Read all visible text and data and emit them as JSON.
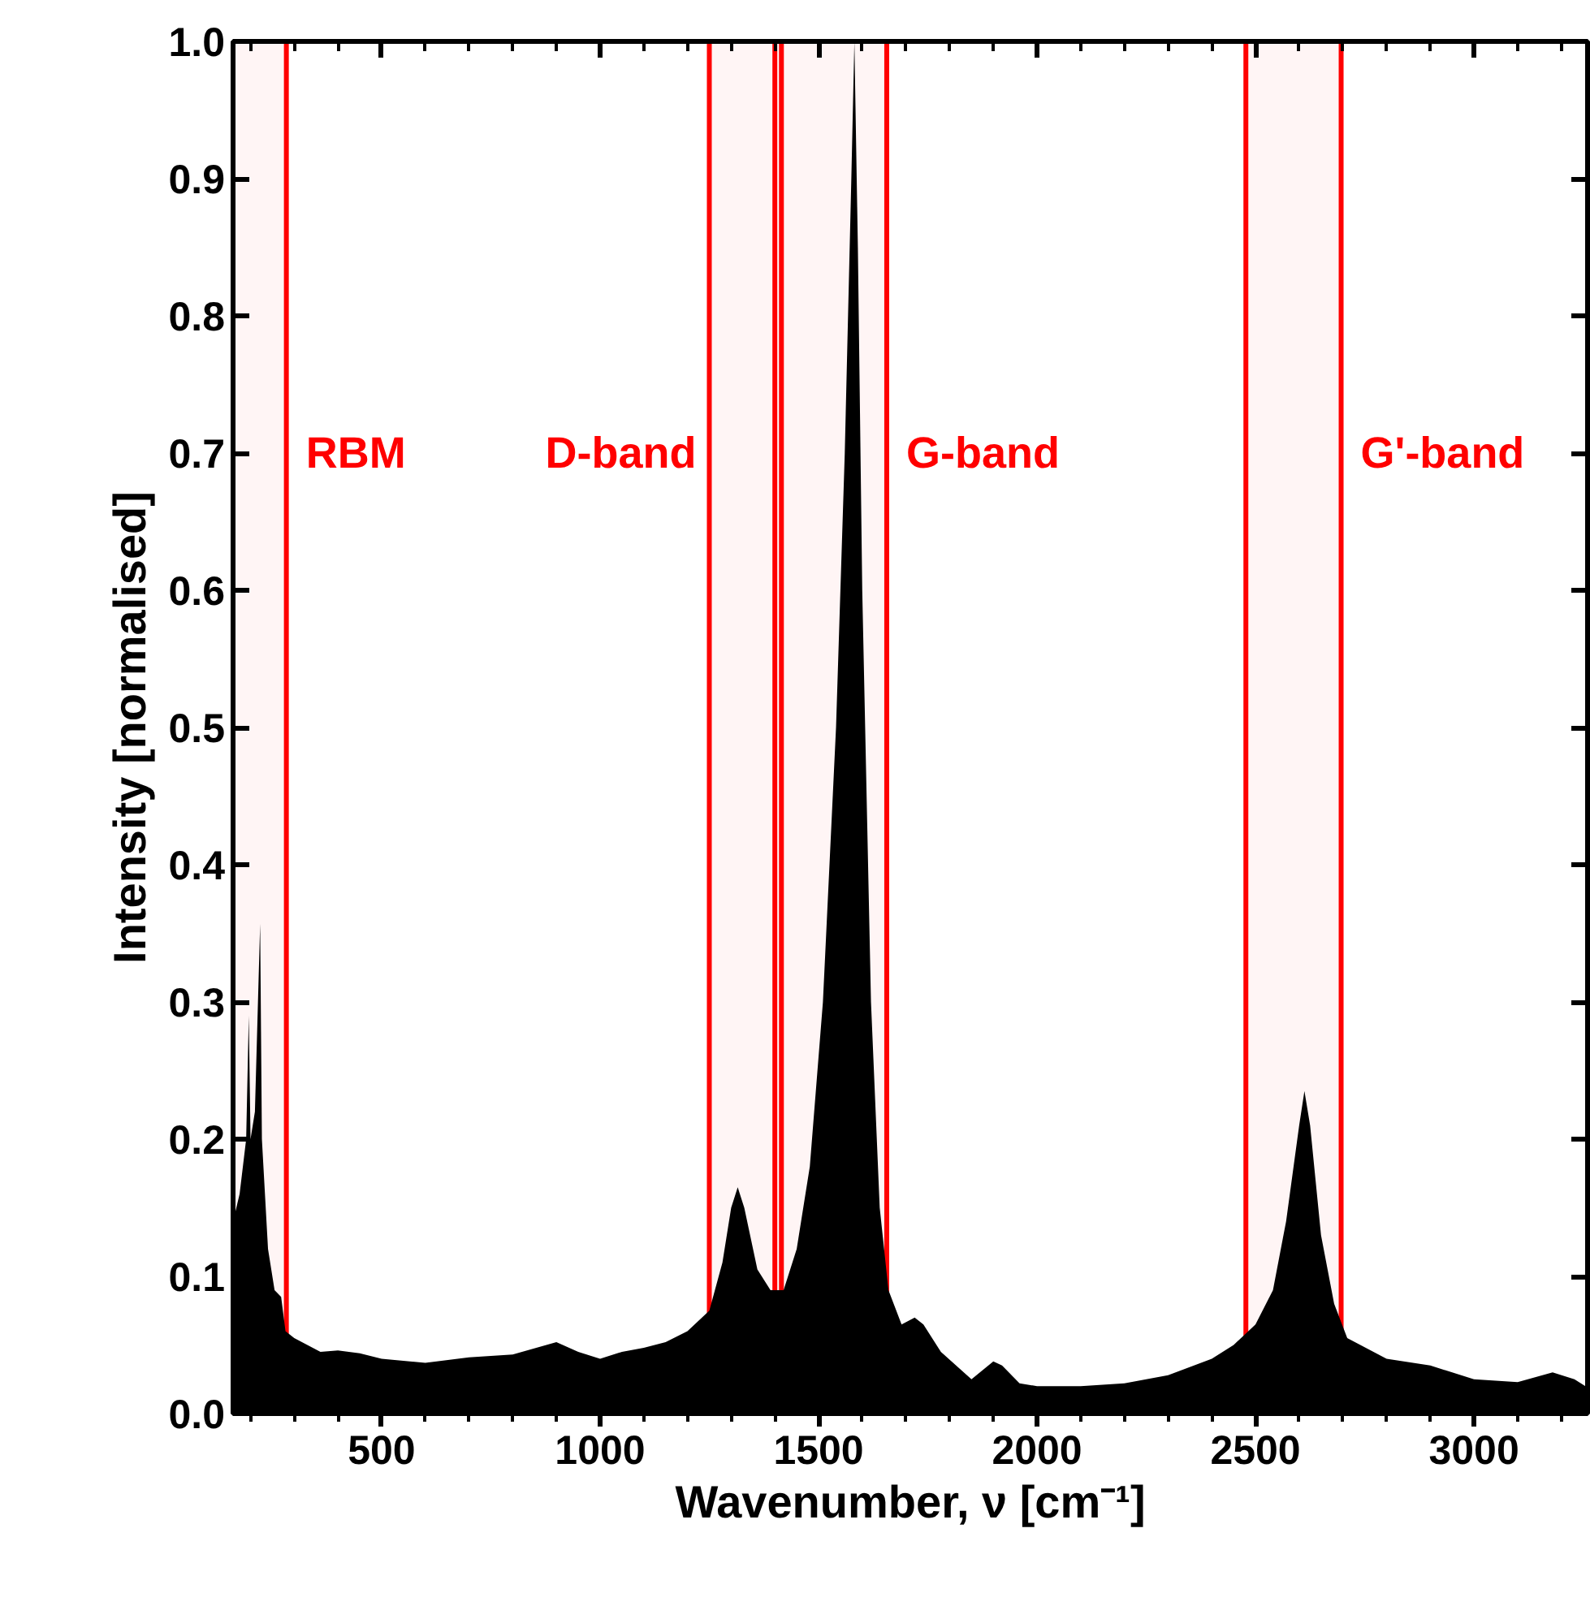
{
  "chart_data": {
    "type": "area",
    "xlabel": "Wavenumber, ν [cm⁻¹]",
    "ylabel": "Intensity [normalised]",
    "x": [
      160,
      175,
      190,
      196,
      200,
      210,
      222,
      226,
      240,
      255,
      270,
      280,
      300,
      330,
      360,
      400,
      450,
      500,
      600,
      700,
      800,
      900,
      950,
      1000,
      1050,
      1100,
      1150,
      1200,
      1250,
      1280,
      1300,
      1315,
      1330,
      1360,
      1390,
      1420,
      1450,
      1480,
      1510,
      1540,
      1560,
      1575,
      1582,
      1590,
      1600,
      1620,
      1640,
      1660,
      1690,
      1720,
      1740,
      1780,
      1850,
      1900,
      1920,
      1960,
      2000,
      2100,
      2200,
      2300,
      2400,
      2450,
      2500,
      2540,
      2570,
      2600,
      2612,
      2625,
      2650,
      2680,
      2710,
      2800,
      2900,
      3000,
      3100,
      3180,
      3230,
      3255
    ],
    "series": [
      {
        "color": "#000000",
        "values": [
          0.14,
          0.16,
          0.2,
          0.29,
          0.2,
          0.22,
          0.357,
          0.2,
          0.12,
          0.09,
          0.085,
          0.06,
          0.055,
          0.05,
          0.045,
          0.046,
          0.044,
          0.04,
          0.037,
          0.041,
          0.043,
          0.052,
          0.045,
          0.04,
          0.045,
          0.048,
          0.052,
          0.06,
          0.075,
          0.11,
          0.15,
          0.165,
          0.15,
          0.105,
          0.09,
          0.09,
          0.12,
          0.18,
          0.3,
          0.5,
          0.7,
          0.9,
          1.0,
          0.85,
          0.6,
          0.3,
          0.15,
          0.09,
          0.065,
          0.07,
          0.065,
          0.045,
          0.025,
          0.038,
          0.035,
          0.022,
          0.02,
          0.02,
          0.022,
          0.028,
          0.04,
          0.05,
          0.065,
          0.09,
          0.14,
          0.21,
          0.235,
          0.21,
          0.13,
          0.08,
          0.055,
          0.04,
          0.035,
          0.025,
          0.023,
          0.03,
          0.025,
          0.02
        ]
      }
    ],
    "xlim": [
      160,
      3260
    ],
    "ylim": [
      0,
      1
    ],
    "xticks": [
      500,
      1000,
      1500,
      2000,
      2500,
      3000
    ],
    "yticks": [
      {
        "value": 0,
        "label": "0.0"
      },
      0.1,
      0.2,
      0.3,
      0.4,
      0.5,
      0.6,
      0.7,
      0.8,
      0.9,
      {
        "value": 1,
        "label": "1.0"
      }
    ],
    "bands": [
      {
        "axis": "x",
        "from": 160,
        "to": 282,
        "label": "RBM",
        "color": "#ff0000"
      },
      {
        "axis": "x",
        "from": 1250,
        "to": 1400,
        "label": "D-band",
        "color": "#ff0000"
      },
      {
        "axis": "x",
        "from": 1415,
        "to": 1656,
        "label": "G-band",
        "color": "#ff0000"
      },
      {
        "axis": "x",
        "from": 2478,
        "to": 2696,
        "label": "G'-band",
        "color": "#ff0000"
      }
    ],
    "grid": false
  }
}
